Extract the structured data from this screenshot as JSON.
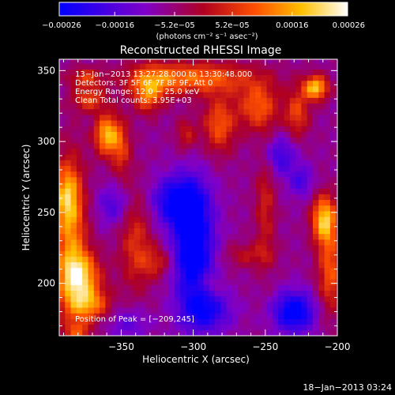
{
  "chart_data": {
    "type": "heatmap",
    "title": "Reconstructed RHESSI Image",
    "xlabel": "Heliocentric X (arcsec)",
    "ylabel": "Heliocentric Y (arcsec)",
    "xlim": [
      -393,
      -200
    ],
    "ylim": [
      163,
      358
    ],
    "xticks": [
      -350,
      -300,
      -250,
      -200
    ],
    "xtick_labels": [
      "−350",
      "−300",
      "−250",
      "−200"
    ],
    "yticks": [
      200,
      250,
      300,
      350
    ],
    "ytick_labels": [
      "200",
      "250",
      "300",
      "350"
    ],
    "colorbar": {
      "min": -0.00026,
      "max": 0.00026,
      "colormap": "blue-purple-red-yellow-white",
      "tick_values": [
        -0.00026,
        -0.00016,
        -5.2e-05,
        5.2e-05,
        0.00016,
        0.00026
      ],
      "tick_labels": [
        "−0.00026",
        "−0.00016",
        "−5.2e−05",
        "5.2e−05",
        "0.00016",
        "0.00026"
      ],
      "unit_label": "(photons cm⁻² s⁻¹ asec⁻²)"
    },
    "annotations": {
      "time_range": "13−Jan−2013 13:27:28.000 to 13:30:48.000",
      "detectors": "Detectors: 3F 5F 6F 7F 8F 9F, Att 0",
      "energy_range": "Energy Range: 12.0 − 25.0 keV",
      "method": "Clean     Total counts: 3.95E+03",
      "peak": "Position of Peak = [−209,245]",
      "plot_date": "18−Jan−2013 03:24"
    },
    "peak": {
      "x": -209,
      "y": 245
    },
    "hotspots": [
      {
        "x": -385,
        "y": 230,
        "v": 0.00018,
        "sx": 8,
        "sy": 40
      },
      {
        "x": -378,
        "y": 205,
        "v": 0.00022,
        "sx": 10,
        "sy": 12
      },
      {
        "x": -388,
        "y": 262,
        "v": 0.00016,
        "sx": 6,
        "sy": 15
      },
      {
        "x": -360,
        "y": 305,
        "v": 0.00024,
        "sx": 6,
        "sy": 10
      },
      {
        "x": -350,
        "y": 295,
        "v": 0.00012,
        "sx": 5,
        "sy": 14
      },
      {
        "x": -372,
        "y": 330,
        "v": 0.00014,
        "sx": 8,
        "sy": 6
      },
      {
        "x": -300,
        "y": 345,
        "v": 0.00018,
        "sx": 30,
        "sy": 8
      },
      {
        "x": -330,
        "y": 340,
        "v": 0.00012,
        "sx": 10,
        "sy": 10
      },
      {
        "x": -282,
        "y": 312,
        "v": 0.00016,
        "sx": 8,
        "sy": 14
      },
      {
        "x": -305,
        "y": 305,
        "v": 0.0001,
        "sx": 5,
        "sy": 8
      },
      {
        "x": -255,
        "y": 325,
        "v": 0.00016,
        "sx": 10,
        "sy": 12
      },
      {
        "x": -215,
        "y": 338,
        "v": 0.00026,
        "sx": 6,
        "sy": 6
      },
      {
        "x": -228,
        "y": 320,
        "v": 0.00014,
        "sx": 6,
        "sy": 12
      },
      {
        "x": -209,
        "y": 245,
        "v": 0.00026,
        "sx": 6,
        "sy": 12
      },
      {
        "x": -250,
        "y": 255,
        "v": 0.0001,
        "sx": 5,
        "sy": 30
      },
      {
        "x": -262,
        "y": 220,
        "v": 8e-05,
        "sx": 12,
        "sy": 6
      },
      {
        "x": -205,
        "y": 208,
        "v": 0.00016,
        "sx": 6,
        "sy": 20
      },
      {
        "x": -340,
        "y": 230,
        "v": 0.00012,
        "sx": 8,
        "sy": 25
      },
      {
        "x": -372,
        "y": 185,
        "v": 0.00018,
        "sx": 10,
        "sy": 8
      },
      {
        "x": -325,
        "y": 215,
        "v": 0.0001,
        "sx": 8,
        "sy": 8
      },
      {
        "x": -375,
        "y": 345,
        "v": 0.00012,
        "sx": 8,
        "sy": 5
      },
      {
        "x": -332,
        "y": 330,
        "v": 0.0001,
        "sx": 6,
        "sy": 8
      },
      {
        "x": -290,
        "y": 200,
        "v": 6e-05,
        "sx": 6,
        "sy": 5
      },
      {
        "x": -300,
        "y": 225,
        "v": -0.00024,
        "sx": 10,
        "sy": 30
      },
      {
        "x": -290,
        "y": 180,
        "v": -0.00014,
        "sx": 12,
        "sy": 10
      },
      {
        "x": -230,
        "y": 180,
        "v": -0.00022,
        "sx": 10,
        "sy": 10
      },
      {
        "x": -312,
        "y": 258,
        "v": -0.00018,
        "sx": 12,
        "sy": 12
      },
      {
        "x": -240,
        "y": 290,
        "v": -0.00012,
        "sx": 8,
        "sy": 10
      },
      {
        "x": -355,
        "y": 255,
        "v": -0.0001,
        "sx": 8,
        "sy": 10
      },
      {
        "x": -225,
        "y": 272,
        "v": -0.0001,
        "sx": 6,
        "sy": 8
      },
      {
        "x": -345,
        "y": 172,
        "v": -8e-05,
        "sx": 10,
        "sy": 8
      },
      {
        "x": -380,
        "y": 165,
        "v": 0.00012,
        "sx": 6,
        "sy": 6
      }
    ]
  }
}
